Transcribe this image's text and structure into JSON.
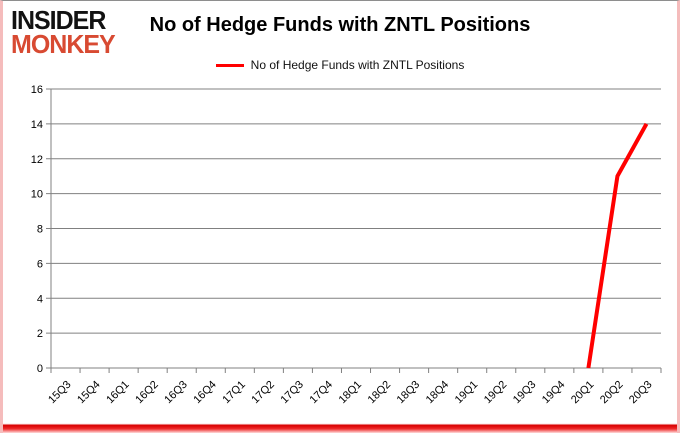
{
  "brand": {
    "line1": "INSIDER",
    "line2": "MONKEY",
    "line1_color": "#121212",
    "line2_color": "#d84a32"
  },
  "title": "No of Hedge Funds with ZNTL Positions",
  "legend": {
    "label": "No of Hedge Funds with ZNTL Positions",
    "line_color": "#ff0000"
  },
  "chart_data": {
    "type": "line",
    "title": "No of Hedge Funds with ZNTL Positions",
    "categories": [
      "15Q3",
      "15Q4",
      "16Q1",
      "16Q2",
      "16Q3",
      "16Q4",
      "17Q1",
      "17Q2",
      "17Q3",
      "17Q4",
      "18Q1",
      "18Q2",
      "18Q3",
      "18Q4",
      "19Q1",
      "19Q2",
      "19Q3",
      "19Q4",
      "20Q1",
      "20Q2",
      "20Q3"
    ],
    "series": [
      {
        "name": "No of Hedge Funds with ZNTL Positions",
        "color": "#ff0000",
        "values": [
          null,
          null,
          null,
          null,
          null,
          null,
          null,
          null,
          null,
          null,
          null,
          null,
          null,
          null,
          null,
          null,
          null,
          null,
          0,
          11,
          14
        ]
      }
    ],
    "ylim": [
      0,
      16
    ],
    "ytick_step": 2,
    "grid": true,
    "legend_position": "top",
    "axis_color": "#808080",
    "grid_color": "#808080",
    "label_color": "#000000",
    "xlabel": "",
    "ylabel": ""
  }
}
